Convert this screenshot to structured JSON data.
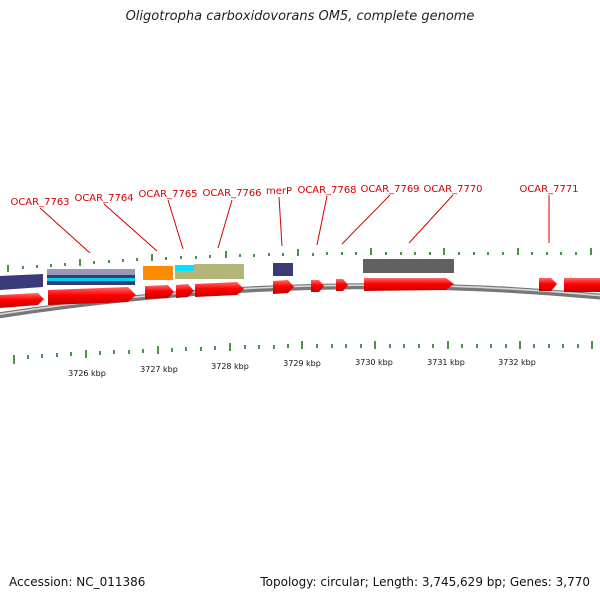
{
  "title": "Oligotropha carboxidovorans OM5, complete genome",
  "genes": [
    {
      "label": "OCAR_7763"
    },
    {
      "label": "OCAR_7764"
    },
    {
      "label": "OCAR_7765"
    },
    {
      "label": "OCAR_7766"
    },
    {
      "label": "merP"
    },
    {
      "label": "OCAR_7768"
    },
    {
      "label": "OCAR_7769"
    },
    {
      "label": "OCAR_7770"
    },
    {
      "label": "OCAR_7771"
    }
  ],
  "ticks": [
    "3726 kbp",
    "3727 kbp",
    "3728 kbp",
    "3729 kbp",
    "3730 kbp",
    "3731 kbp",
    "3732 kbp"
  ],
  "footer": {
    "accession": "Accession: NC_011386",
    "summary": "Topology: circular; Length: 3,745,629 bp; Genes: 3,770"
  },
  "colors": {
    "gene_label": "#d40000",
    "cds": "#ff0000",
    "tick": "#1a7a1a",
    "backbone": "#888888",
    "feature_dark_blue": "#3a3a7a",
    "feature_orange": "#ff8c00",
    "feature_cyan": "#00e5ff",
    "feature_khaki": "#b5b57a",
    "feature_gray": "#606060",
    "feature_lavender": "#9a9ab8"
  }
}
